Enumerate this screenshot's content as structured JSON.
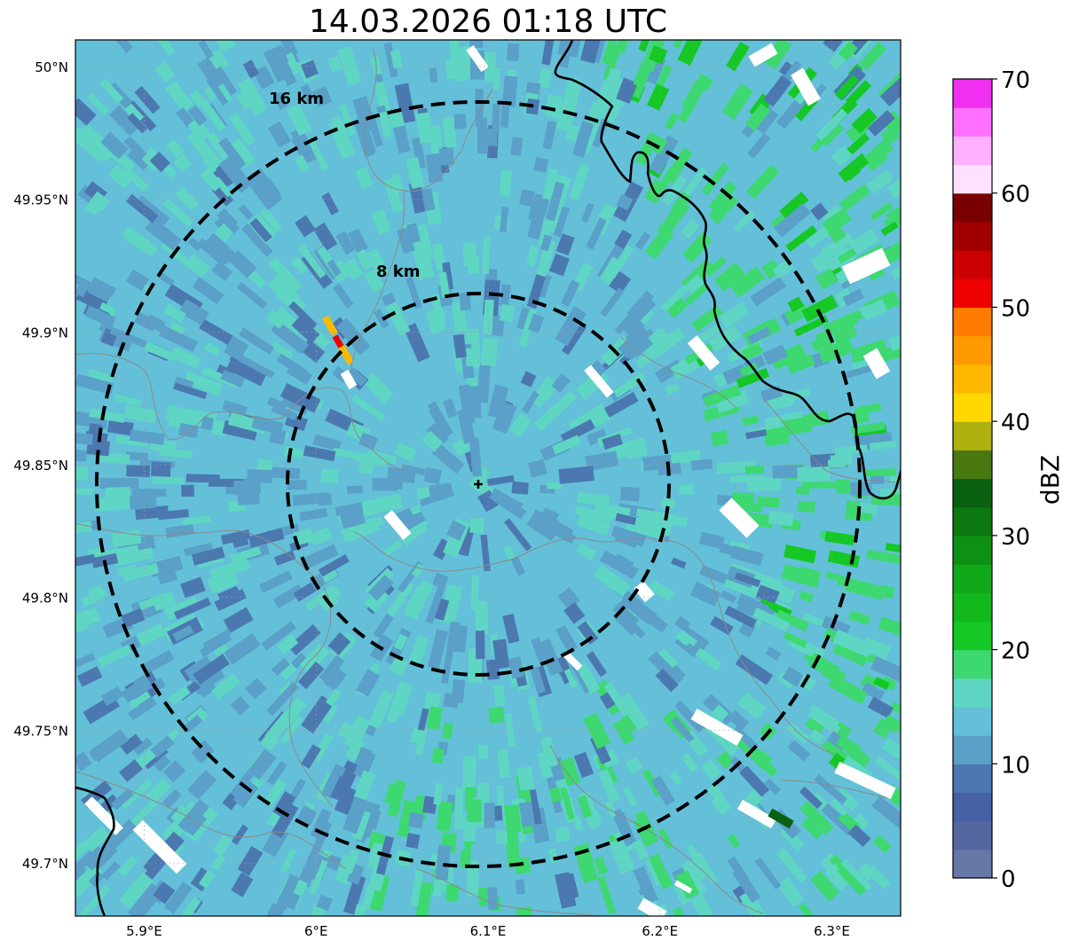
{
  "title": "14.03.2026 01:18 UTC",
  "map": {
    "lon_range": [
      5.86,
      6.34
    ],
    "lat_range": [
      49.68,
      50.01
    ],
    "radar_center": {
      "lon": 6.095,
      "lat": 49.843
    },
    "lon_ticks": [
      {
        "value": 5.9,
        "label": "5.9°E"
      },
      {
        "value": 6.0,
        "label": "6°E"
      },
      {
        "value": 6.1,
        "label": "6.1°E"
      },
      {
        "value": 6.2,
        "label": "6.2°E"
      },
      {
        "value": 6.3,
        "label": "6.3°E"
      }
    ],
    "lat_ticks": [
      {
        "value": 50.0,
        "label": "50°N"
      },
      {
        "value": 49.95,
        "label": "49.95°N"
      },
      {
        "value": 49.9,
        "label": "49.9°N"
      },
      {
        "value": 49.85,
        "label": "49.85°N"
      },
      {
        "value": 49.8,
        "label": "49.8°N"
      },
      {
        "value": 49.75,
        "label": "49.75°N"
      },
      {
        "value": 49.7,
        "label": "49.7°N"
      }
    ],
    "range_rings": [
      {
        "radius_km": 8,
        "label": "8 km"
      },
      {
        "radius_km": 16,
        "label": "16 km"
      }
    ],
    "background_reflectivity": "14 dBZ",
    "features": [
      "country-border",
      "district-borders",
      "lat-lon-grid"
    ]
  },
  "colorbar": {
    "unit": "dBZ",
    "range": [
      0,
      70
    ],
    "step": 2.5,
    "ticks": [
      {
        "value": 0,
        "label": "0"
      },
      {
        "value": 10,
        "label": "10"
      },
      {
        "value": 20,
        "label": "20"
      },
      {
        "value": 30,
        "label": "30"
      },
      {
        "value": 40,
        "label": "40"
      },
      {
        "value": 50,
        "label": "50"
      },
      {
        "value": 60,
        "label": "60"
      },
      {
        "value": 70,
        "label": "70"
      }
    ],
    "colors": [
      "#6578a8",
      "#5467a0",
      "#4560a4",
      "#4c78b0",
      "#5aa0c8",
      "#63c0d8",
      "#5fd6c4",
      "#3dd870",
      "#15c825",
      "#12b81c",
      "#10a818",
      "#0e9014",
      "#0b7810",
      "#086010",
      "#4a7810",
      "#b0b010",
      "#ffd800",
      "#ffb800",
      "#ff9a00",
      "#ff7c00",
      "#ee0000",
      "#cc0000",
      "#a00000",
      "#780000",
      "#ffe0ff",
      "#ffb0ff",
      "#ff70ff",
      "#f030f0"
    ]
  }
}
